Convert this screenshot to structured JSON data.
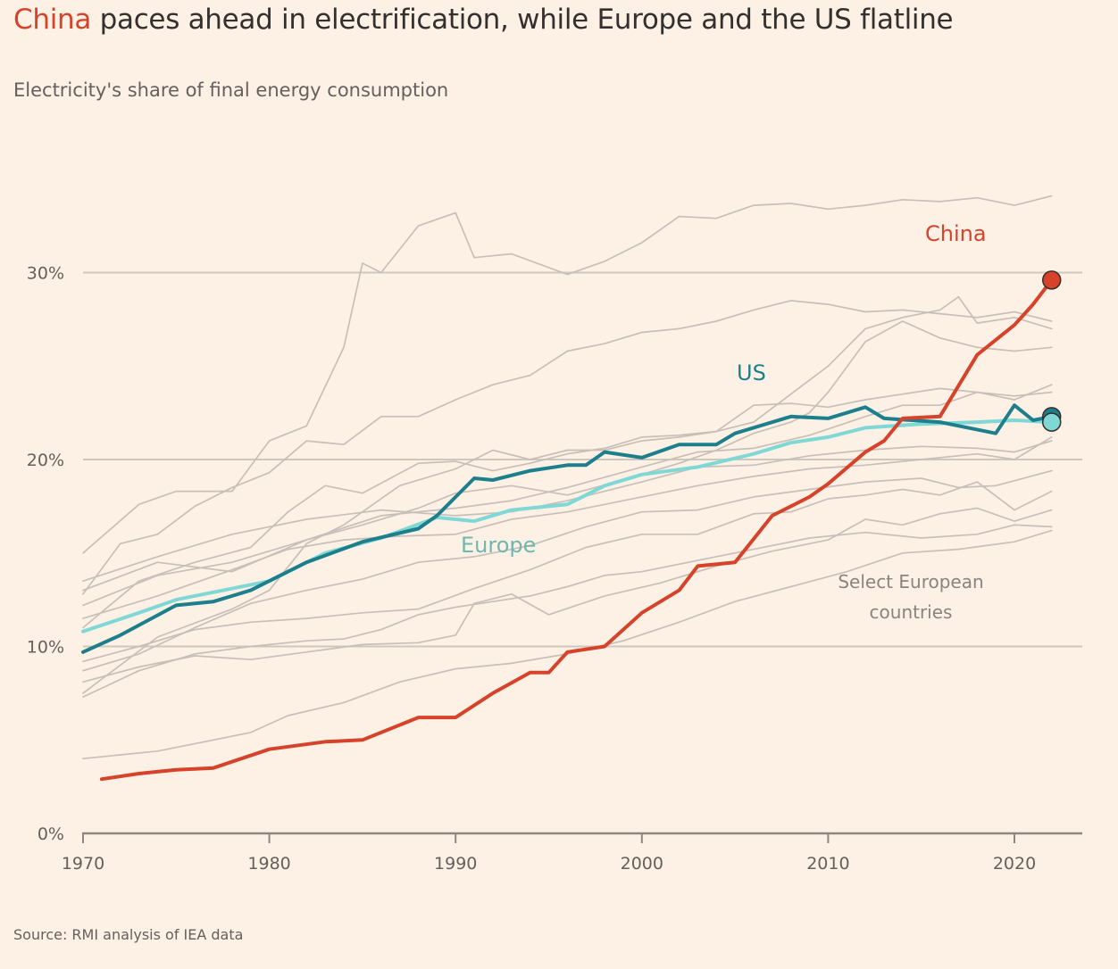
{
  "header": {
    "title_highlight": "China",
    "title_rest": " paces ahead in electrification, while Europe and the US flatline",
    "subtitle": "Electricity's share of final energy consumption"
  },
  "footer": {
    "source": "Source: RMI analysis of IEA data"
  },
  "colors": {
    "background": "#fdf1e6",
    "china": "#d6432a",
    "us": "#1d7f8c",
    "europe": "#7fd8d6",
    "europe_label": "#6fb8ae",
    "countries": "#c7bfb8",
    "grid": "#cfc6bd",
    "axis": "#8e8781"
  },
  "chart_data": {
    "type": "line",
    "title": "China paces ahead in electrification, while Europe and the US flatline",
    "subtitle": "Electricity's share of final energy consumption",
    "xlabel": "",
    "ylabel": "",
    "xlim": [
      1970,
      2023.5
    ],
    "ylim": [
      0,
      35
    ],
    "x_ticks": [
      1970,
      1980,
      1990,
      2000,
      2010,
      2020
    ],
    "x_tick_labels": [
      "1970",
      "1980",
      "1990",
      "2000",
      "2010",
      "2020"
    ],
    "y_ticks": [
      0,
      10,
      20,
      30
    ],
    "y_tick_labels": [
      "0%",
      "10%",
      "20%",
      "30%"
    ],
    "grid": "horizontal",
    "legend": "none (direct labels)",
    "annotations": [
      {
        "text": "China",
        "series": "China"
      },
      {
        "text": "US",
        "series": "US"
      },
      {
        "text": "Europe",
        "series": "Europe"
      },
      {
        "text_lines": [
          "Select European",
          "countries"
        ],
        "series": "Select European countries"
      }
    ],
    "series": [
      {
        "name": "China",
        "role": "highlight",
        "end_marker": true,
        "x": [
          1971,
          1973,
          1975,
          1977,
          1980,
          1983,
          1985,
          1988,
          1990,
          1992,
          1994,
          1995,
          1996,
          1998,
          2000,
          2002,
          2003,
          2005,
          2007,
          2009,
          2010,
          2012,
          2013,
          2014,
          2016,
          2018,
          2020,
          2021,
          2022
        ],
        "values": [
          2.9,
          3.2,
          3.4,
          3.5,
          4.5,
          4.9,
          5.0,
          6.2,
          6.2,
          7.5,
          8.6,
          8.6,
          9.7,
          10.0,
          11.8,
          13.0,
          14.3,
          14.5,
          17.0,
          18.0,
          18.7,
          20.4,
          21.0,
          22.2,
          22.3,
          25.6,
          27.2,
          28.3,
          29.6
        ]
      },
      {
        "name": "US",
        "role": "highlight",
        "end_marker": true,
        "x": [
          1970,
          1972,
          1975,
          1977,
          1979,
          1982,
          1985,
          1988,
          1989,
          1991,
          1992,
          1994,
          1996,
          1997,
          1998,
          2000,
          2002,
          2004,
          2005,
          2008,
          2010,
          2012,
          2013,
          2016,
          2019,
          2020,
          2021,
          2022
        ],
        "values": [
          9.7,
          10.6,
          12.2,
          12.4,
          13.0,
          14.5,
          15.6,
          16.3,
          17.0,
          19.0,
          18.9,
          19.4,
          19.7,
          19.7,
          20.4,
          20.1,
          20.8,
          20.8,
          21.4,
          22.3,
          22.2,
          22.8,
          22.2,
          22.0,
          21.4,
          22.9,
          22.1,
          22.3
        ]
      },
      {
        "name": "Europe",
        "role": "highlight",
        "end_marker": true,
        "x": [
          1970,
          1973,
          1975,
          1980,
          1983,
          1986,
          1989,
          1991,
          1993,
          1996,
          1998,
          2000,
          2003,
          2006,
          2008,
          2010,
          2012,
          2015,
          2018,
          2020,
          2022
        ],
        "values": [
          10.8,
          11.8,
          12.5,
          13.5,
          15.0,
          15.8,
          16.9,
          16.7,
          17.3,
          17.6,
          18.6,
          19.2,
          19.6,
          20.3,
          20.9,
          21.2,
          21.7,
          21.9,
          22.0,
          22.1,
          22.0
        ]
      }
    ],
    "background_series": {
      "name": "Select European countries",
      "lines": [
        {
          "x": [
            1970,
            1973,
            1975,
            1978,
            1980,
            1982,
            1984,
            1985,
            1986,
            1988,
            1990,
            1991,
            1993,
            1996,
            1998,
            2000,
            2002,
            2004,
            2006,
            2008,
            2010,
            2012,
            2014,
            2016,
            2018,
            2020,
            2022
          ],
          "values": [
            15.0,
            17.6,
            18.3,
            18.3,
            21.0,
            21.8,
            26.0,
            30.5,
            30.0,
            32.5,
            33.2,
            30.8,
            31.0,
            29.9,
            30.6,
            31.6,
            33.0,
            32.9,
            33.6,
            33.7,
            33.4,
            33.6,
            33.9,
            33.8,
            34.0,
            33.6,
            34.1
          ]
        },
        {
          "x": [
            1970,
            1972,
            1974,
            1976,
            1978,
            1980,
            1982,
            1984,
            1986,
            1988,
            1990,
            1992,
            1994,
            1996,
            1998,
            2000,
            2002,
            2004,
            2006,
            2008,
            2010,
            2012,
            2014,
            2016,
            2018,
            2020,
            2022
          ],
          "values": [
            12.8,
            15.5,
            16.0,
            17.5,
            18.5,
            19.3,
            21.0,
            20.8,
            22.3,
            22.3,
            23.2,
            24.0,
            24.5,
            25.8,
            26.2,
            26.8,
            27.0,
            27.4,
            28.0,
            28.5,
            28.3,
            27.9,
            28.0,
            27.8,
            27.6,
            27.9,
            27.4
          ]
        },
        {
          "x": [
            1970,
            1973,
            1976,
            1979,
            1981,
            1983,
            1985,
            1988,
            1990,
            1992,
            1994,
            1996,
            1998,
            2000,
            2002,
            2004,
            2006,
            2008,
            2010,
            2012,
            2014,
            2016,
            2018,
            2020,
            2022
          ],
          "values": [
            11.0,
            13.5,
            14.5,
            15.3,
            17.2,
            18.6,
            18.2,
            19.8,
            19.9,
            19.4,
            19.8,
            20.3,
            20.6,
            21.2,
            21.3,
            21.5,
            22.9,
            23.0,
            22.8,
            23.2,
            23.5,
            23.8,
            23.6,
            23.4,
            23.6
          ]
        },
        {
          "x": [
            1970,
            1974,
            1978,
            1980,
            1982,
            1984,
            1987,
            1990,
            1992,
            1994,
            1996,
            1998,
            2000,
            2002,
            2004,
            2006,
            2008,
            2010,
            2011,
            2012,
            2014,
            2016,
            2017,
            2018,
            2020,
            2022
          ],
          "values": [
            7.5,
            10.5,
            12.0,
            13.0,
            15.5,
            16.5,
            18.6,
            19.5,
            20.5,
            20.0,
            20.5,
            20.5,
            21.0,
            21.2,
            21.5,
            22.0,
            23.5,
            25.0,
            26.0,
            27.0,
            27.6,
            28.0,
            28.7,
            27.3,
            27.6,
            27.0
          ]
        },
        {
          "x": [
            1970,
            1974,
            1978,
            1982,
            1985,
            1988,
            1990,
            1993,
            1996,
            1999,
            2002,
            2004,
            2006,
            2008,
            2009,
            2010,
            2012,
            2014,
            2016,
            2018,
            2020,
            2022
          ],
          "values": [
            12.2,
            13.8,
            14.5,
            15.7,
            16.5,
            17.4,
            18.2,
            18.6,
            18.1,
            18.9,
            19.8,
            20.5,
            21.4,
            22.0,
            22.5,
            23.6,
            26.3,
            27.4,
            26.5,
            26.0,
            25.8,
            26.0
          ]
        },
        {
          "x": [
            1970,
            1974,
            1978,
            1982,
            1986,
            1990,
            1993,
            1996,
            2000,
            2003,
            2006,
            2009,
            2012,
            2014,
            2016,
            2018,
            2020,
            2022
          ],
          "values": [
            13.0,
            14.5,
            14.0,
            15.7,
            17.0,
            17.4,
            17.8,
            18.5,
            19.6,
            20.4,
            20.6,
            21.3,
            22.3,
            22.9,
            22.9,
            23.6,
            23.2,
            24.0
          ]
        },
        {
          "x": [
            1970,
            1974,
            1978,
            1982,
            1986,
            1990,
            1993,
            1996,
            2000,
            2003,
            2006,
            2009,
            2012,
            2015,
            2018,
            2020,
            2022
          ],
          "values": [
            13.5,
            14.8,
            16.0,
            16.8,
            17.3,
            17.0,
            17.2,
            17.8,
            18.8,
            19.6,
            19.7,
            20.2,
            20.5,
            20.7,
            20.6,
            20.4,
            21.0
          ]
        },
        {
          "x": [
            1970,
            1974,
            1978,
            1981,
            1984,
            1987,
            1990,
            1993,
            1996,
            2000,
            2003,
            2006,
            2009,
            2012,
            2015,
            2018,
            2020,
            2022
          ],
          "values": [
            11.5,
            12.7,
            14.1,
            15.2,
            15.7,
            15.9,
            16.0,
            16.8,
            17.2,
            18.0,
            18.6,
            19.1,
            19.5,
            19.7,
            20.0,
            20.3,
            20.0,
            21.2
          ]
        },
        {
          "x": [
            1970,
            1973,
            1976,
            1979,
            1982,
            1985,
            1988,
            1991,
            1994,
            1997,
            2000,
            2003,
            2006,
            2009,
            2012,
            2015,
            2017,
            2019,
            2022
          ],
          "values": [
            8.7,
            9.6,
            11.0,
            12.3,
            13.0,
            13.6,
            14.5,
            14.8,
            15.4,
            16.4,
            17.2,
            17.3,
            18.0,
            18.4,
            18.8,
            19.0,
            18.5,
            18.6,
            19.4
          ]
        },
        {
          "x": [
            1970,
            1973,
            1976,
            1979,
            1982,
            1985,
            1988,
            1991,
            1994,
            1997,
            2000,
            2003,
            2006,
            2008,
            2010,
            2012,
            2014,
            2016,
            2018,
            2020,
            2022
          ],
          "values": [
            9.2,
            10.0,
            10.9,
            11.3,
            11.5,
            11.8,
            12.0,
            13.1,
            14.1,
            15.3,
            16.0,
            16.0,
            17.1,
            17.2,
            17.9,
            18.1,
            18.4,
            18.1,
            18.8,
            17.3,
            18.3
          ]
        },
        {
          "x": [
            1970,
            1973,
            1976,
            1979,
            1982,
            1985,
            1988,
            1990,
            1991,
            1993,
            1995,
            1998,
            2001,
            2004,
            2007,
            2010,
            2012,
            2014,
            2016,
            2018,
            2020,
            2022
          ],
          "values": [
            8.1,
            8.9,
            9.5,
            9.3,
            9.7,
            10.1,
            10.2,
            10.6,
            12.3,
            12.8,
            11.7,
            12.7,
            13.4,
            14.3,
            15.1,
            15.7,
            16.8,
            16.5,
            17.1,
            17.4,
            16.7,
            17.3
          ]
        },
        {
          "x": [
            1970,
            1973,
            1976,
            1979,
            1982,
            1984,
            1986,
            1988,
            1990,
            1992,
            1994,
            1996,
            1998,
            2000,
            2003,
            2006,
            2009,
            2012,
            2015,
            2018,
            2020,
            2022
          ],
          "values": [
            7.3,
            8.7,
            9.6,
            10.0,
            10.3,
            10.4,
            10.9,
            11.7,
            12.1,
            12.4,
            12.7,
            13.2,
            13.8,
            14.0,
            14.6,
            15.2,
            15.8,
            16.1,
            15.8,
            16.0,
            16.5,
            16.4
          ]
        },
        {
          "x": [
            1970,
            1972,
            1974,
            1977,
            1979,
            1981,
            1984,
            1987,
            1990,
            1993,
            1996,
            1999,
            2002,
            2005,
            2008,
            2011,
            2014,
            2017,
            2020,
            2022
          ],
          "values": [
            4.0,
            4.2,
            4.4,
            5.0,
            5.4,
            6.3,
            7.0,
            8.1,
            8.8,
            9.1,
            9.6,
            10.3,
            11.3,
            12.4,
            13.2,
            14.0,
            15.0,
            15.2,
            15.6,
            16.2
          ]
        }
      ]
    }
  }
}
